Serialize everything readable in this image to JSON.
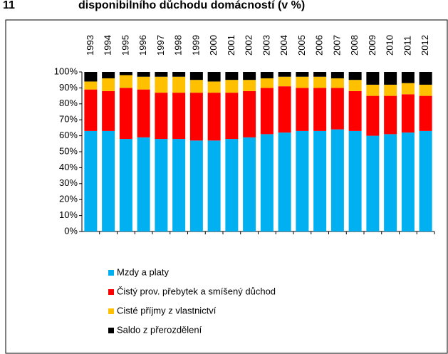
{
  "chart_data": {
    "type": "stacked_bar",
    "figure_number": "11",
    "title": "disponibilního důchodu domácností (v %)",
    "categories": [
      "1993",
      "1994",
      "1995",
      "1996",
      "1997",
      "1998",
      "1999",
      "2000",
      "2001",
      "2002",
      "2003",
      "2004",
      "2005",
      "2006",
      "2007",
      "2008",
      "2009",
      "2010",
      "2011",
      "2012"
    ],
    "series": [
      {
        "name": "Mzdy a platy",
        "color": "#00b0f0",
        "values": [
          63,
          63,
          58,
          59,
          58,
          58,
          57,
          57,
          58,
          59,
          61,
          62,
          63,
          63,
          64,
          63,
          60,
          61,
          62,
          63
        ]
      },
      {
        "name": "Čistý prov. přebytek a smíšený důchod",
        "color": "#ff0000",
        "values": [
          26,
          25,
          32,
          30,
          29,
          29,
          30,
          30,
          29,
          29,
          29,
          29,
          27,
          27,
          26,
          25,
          25,
          24,
          24,
          22
        ]
      },
      {
        "name": "Cisté příjmy z vlastnictví",
        "color": "#ffc000",
        "values": [
          5,
          8,
          8,
          8,
          10,
          10,
          8,
          7,
          8,
          7,
          6,
          6,
          7,
          7,
          6,
          7,
          7,
          7,
          7,
          7
        ]
      },
      {
        "name": "Saldo z přerozdělení",
        "color": "#000000",
        "values": [
          6,
          4,
          2,
          3,
          3,
          3,
          5,
          6,
          5,
          5,
          4,
          3,
          3,
          3,
          4,
          5,
          8,
          8,
          7,
          8
        ]
      }
    ],
    "ylim": [
      0,
      100
    ],
    "yticks": [
      {
        "value": 0,
        "label": "0%"
      },
      {
        "value": 10,
        "label": "10%"
      },
      {
        "value": 20,
        "label": "20%"
      },
      {
        "value": 30,
        "label": "30%"
      },
      {
        "value": 40,
        "label": "40%"
      },
      {
        "value": 50,
        "label": "50%"
      },
      {
        "value": 60,
        "label": "60%"
      },
      {
        "value": 70,
        "label": "70%"
      },
      {
        "value": 80,
        "label": "80%"
      },
      {
        "value": 90,
        "label": "90%"
      },
      {
        "value": 100,
        "label": "100%"
      }
    ],
    "legend": "bottom-left"
  }
}
